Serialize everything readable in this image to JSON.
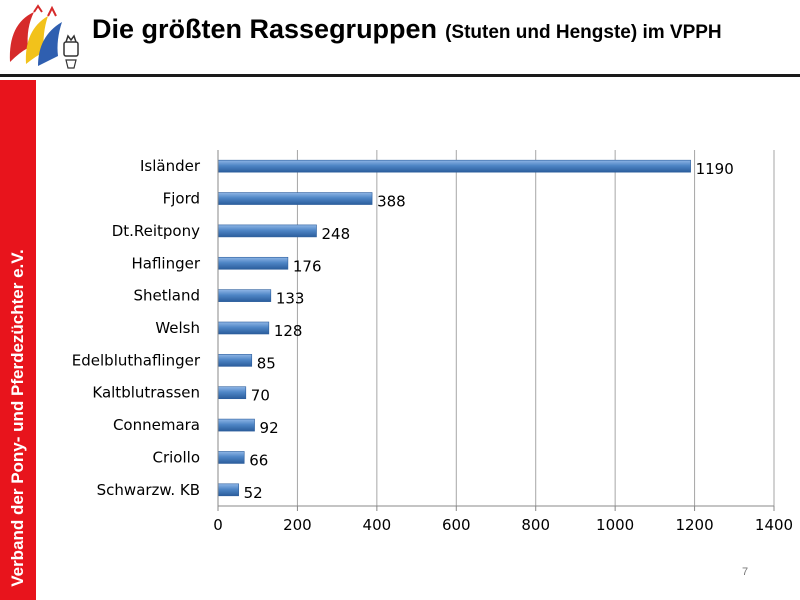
{
  "header": {
    "title": "Die größten Rassegruppen",
    "subtitle": "(Stuten und Hengste) im VPPH"
  },
  "sidebar": {
    "text": "Verband der Pony- und Pferdezüchter e.V."
  },
  "page_number": "7",
  "colors": {
    "bar": "#4f86c6",
    "bar_dark": "#2b5d9c",
    "sidebar": "#e8141c",
    "grid": "#a6a6a6"
  },
  "chart_data": {
    "type": "bar",
    "orientation": "horizontal",
    "categories": [
      "Isländer",
      "Fjord",
      "Dt.Reitpony",
      "Haflinger",
      "Shetland",
      "Welsh",
      "Edelbluthaflinger",
      "Kaltblutrassen",
      "Connemara",
      "Criollo",
      "Schwarzw. KB"
    ],
    "values": [
      1190,
      388,
      248,
      176,
      133,
      128,
      85,
      70,
      92,
      66,
      52
    ],
    "xlim": [
      0,
      1400
    ],
    "x_ticks": [
      0,
      200,
      400,
      600,
      800,
      1000,
      1200,
      1400
    ],
    "grid": true,
    "data_labels": true,
    "legend": "none"
  }
}
